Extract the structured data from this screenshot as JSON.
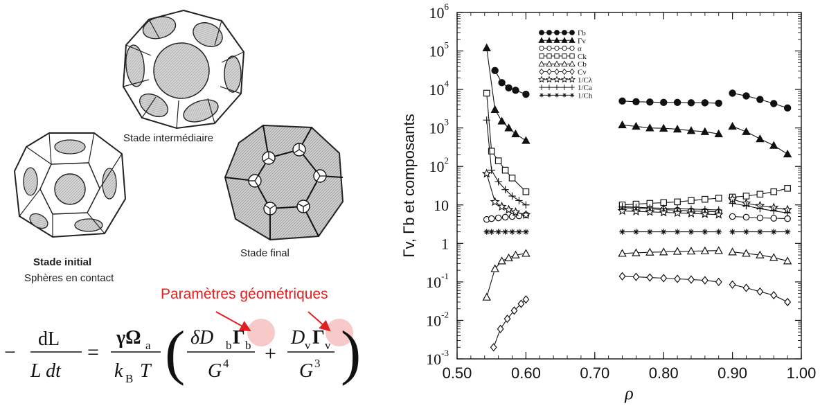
{
  "figure": {
    "captions": {
      "intermediate": "Stade intermédiaire",
      "initial_title": "Stade initial",
      "initial_subtitle": "Sphères en contact",
      "final": "Stade final"
    },
    "annotation": "Paramètres géométriques",
    "equation": {
      "minus": "−",
      "lhs_num": "dL",
      "lhs_den": "L dt",
      "equals": "=",
      "coef_num": "γΩ",
      "coef_num_sub": "a",
      "coef_den": "k",
      "coef_den_sub": "B",
      "coef_den_T": "T",
      "term1_num_prefix": "δD",
      "term1_num_sub": "b",
      "term1_gamma": "Γ",
      "term1_gamma_sub": "b",
      "term1_den": "G",
      "term1_den_exp": "4",
      "plus": "+",
      "term2_num_prefix": "D",
      "term2_num_sub": "v",
      "term2_gamma": "Γ",
      "term2_gamma_sub": "v",
      "term2_den": "G",
      "term2_den_exp": "3",
      "highlight_color": "#f7c9c9",
      "arrow_color": "#e02020"
    }
  },
  "chart_data": {
    "type": "scatter",
    "xlabel": "ρ",
    "ylabel": "Γv, Γb et composants",
    "xlim": [
      0.5,
      1.0
    ],
    "ylim_log10": [
      -3,
      6
    ],
    "x_ticks": [
      "0.50",
      "0.60",
      "0.70",
      "0.80",
      "0.90",
      "1.00"
    ],
    "y_ticks": [
      {
        "base": "10",
        "exp": "6"
      },
      {
        "base": "10",
        "exp": "5"
      },
      {
        "base": "10",
        "exp": "4"
      },
      {
        "base": "10",
        "exp": "3"
      },
      {
        "base": "10",
        "exp": "2"
      },
      {
        "base": "10",
        "exp": ""
      },
      {
        "base": "1",
        "exp": ""
      },
      {
        "base": "10",
        "exp": "-1"
      },
      {
        "base": "10",
        "exp": "-2"
      },
      {
        "base": "10",
        "exp": "-3"
      }
    ],
    "legend_position": "top-left",
    "series": [
      {
        "name": "Γb",
        "marker": "filled-circle",
        "segments": [
          {
            "x": [
              0.555,
              0.565,
              0.575,
              0.585,
              0.6
            ],
            "y": [
              31000,
              15000,
              11000,
              9500,
              7500
            ]
          },
          {
            "x": [
              0.74,
              0.76,
              0.78,
              0.8,
              0.82,
              0.84,
              0.86,
              0.88
            ],
            "y": [
              5000,
              4800,
              4700,
              4600,
              4600,
              4500,
              4500,
              4400
            ]
          },
          {
            "x": [
              0.9,
              0.92,
              0.94,
              0.96,
              0.98
            ],
            "y": [
              8000,
              6800,
              5500,
              4300,
              3300
            ]
          }
        ]
      },
      {
        "name": "Γv",
        "marker": "filled-triangle",
        "segments": [
          {
            "x": [
              0.543,
              0.555,
              0.565,
              0.575,
              0.585,
              0.6
            ],
            "y": [
              120000,
              3000,
              1500,
              1000,
              700,
              470
            ]
          },
          {
            "x": [
              0.74,
              0.76,
              0.78,
              0.8,
              0.82,
              0.84,
              0.86,
              0.88
            ],
            "y": [
              1200,
              1100,
              1000,
              980,
              930,
              850,
              800,
              700
            ]
          },
          {
            "x": [
              0.9,
              0.92,
              0.94,
              0.96,
              0.98
            ],
            "y": [
              1100,
              800,
              520,
              350,
              210
            ]
          }
        ]
      },
      {
        "name": "α",
        "marker": "open-circle",
        "segments": [
          {
            "x": [
              0.543,
              0.55,
              0.56,
              0.57,
              0.58,
              0.59,
              0.6
            ],
            "y": [
              4.2,
              4.4,
              4.6,
              4.8,
              5.0,
              5.2,
              5.5
            ]
          },
          {
            "x": [
              0.74,
              0.76,
              0.78,
              0.8,
              0.82,
              0.84,
              0.86,
              0.88
            ],
            "y": [
              8.5,
              8.2,
              7.9,
              7.6,
              7.3,
              7.0,
              6.8,
              6.6
            ]
          },
          {
            "x": [
              0.9,
              0.92,
              0.94,
              0.96,
              0.98
            ],
            "y": [
              5.0,
              4.8,
              4.6,
              4.5,
              4.4
            ]
          }
        ]
      },
      {
        "name": "Ck",
        "marker": "open-square",
        "segments": [
          {
            "x": [
              0.543,
              0.55,
              0.56,
              0.57,
              0.58,
              0.6
            ],
            "y": [
              8000,
              250,
              140,
              80,
              50,
              22
            ]
          },
          {
            "x": [
              0.74,
              0.76,
              0.78,
              0.8,
              0.82,
              0.84,
              0.86,
              0.88
            ],
            "y": [
              10,
              10.5,
              11,
              11.5,
              12,
              13,
              14,
              15
            ]
          },
          {
            "x": [
              0.9,
              0.92,
              0.94,
              0.96,
              0.98
            ],
            "y": [
              16,
              17,
              19,
              22,
              27
            ]
          }
        ]
      },
      {
        "name": "Cb",
        "marker": "open-triangle",
        "segments": [
          {
            "x": [
              0.543,
              0.555,
              0.565,
              0.575,
              0.585,
              0.6
            ],
            "y": [
              0.04,
              0.22,
              0.35,
              0.42,
              0.5,
              0.55
            ]
          },
          {
            "x": [
              0.74,
              0.76,
              0.78,
              0.8,
              0.82,
              0.84,
              0.86,
              0.88
            ],
            "y": [
              0.55,
              0.57,
              0.59,
              0.6,
              0.62,
              0.63,
              0.64,
              0.65
            ]
          },
          {
            "x": [
              0.9,
              0.92,
              0.94,
              0.96,
              0.98
            ],
            "y": [
              0.6,
              0.55,
              0.5,
              0.43,
              0.35
            ]
          }
        ]
      },
      {
        "name": "Cv",
        "marker": "open-diamond",
        "segments": [
          {
            "x": [
              0.553,
              0.563,
              0.573,
              0.583,
              0.593,
              0.6
            ],
            "y": [
              0.002,
              0.006,
              0.011,
              0.018,
              0.027,
              0.035
            ]
          },
          {
            "x": [
              0.74,
              0.76,
              0.78,
              0.8,
              0.82,
              0.84,
              0.86,
              0.88
            ],
            "y": [
              0.14,
              0.135,
              0.13,
              0.125,
              0.12,
              0.115,
              0.11,
              0.1
            ]
          },
          {
            "x": [
              0.9,
              0.92,
              0.94,
              0.96,
              0.98
            ],
            "y": [
              0.085,
              0.07,
              0.056,
              0.045,
              0.03
            ]
          }
        ]
      },
      {
        "name": "1/Cλ",
        "marker": "open-star",
        "segments": [
          {
            "x": [
              0.543,
              0.555,
              0.565,
              0.575,
              0.585,
              0.6
            ],
            "y": [
              65,
              12,
              9,
              7.5,
              6.5,
              5.5
            ]
          },
          {
            "x": [
              0.74,
              0.76,
              0.78,
              0.8,
              0.82,
              0.84,
              0.86,
              0.88
            ],
            "y": [
              7,
              6.8,
              6.6,
              6.4,
              6.2,
              6.0,
              5.8,
              5.6
            ]
          },
          {
            "x": [
              0.9,
              0.92,
              0.94,
              0.96,
              0.98
            ],
            "y": [
              14,
              11,
              9.5,
              8.5,
              7.5
            ]
          }
        ]
      },
      {
        "name": "1/Ca",
        "marker": "plus",
        "segments": [
          {
            "x": [
              0.543,
              0.55,
              0.56,
              0.57,
              0.58,
              0.59,
              0.6
            ],
            "y": [
              1600,
              80,
              40,
              25,
              17,
              13,
              10
            ]
          },
          {
            "x": [
              0.74,
              0.76,
              0.78,
              0.8,
              0.82,
              0.84,
              0.86,
              0.88
            ],
            "y": [
              9,
              8.7,
              8.4,
              8.2,
              8.0,
              7.8,
              7.6,
              7.4
            ]
          },
          {
            "x": [
              0.9,
              0.92,
              0.94,
              0.96,
              0.98
            ],
            "y": [
              11,
              9.5,
              8.0,
              7.0,
              6.2
            ]
          }
        ]
      },
      {
        "name": "1/Ch",
        "marker": "asterisk",
        "segments": [
          {
            "x": [
              0.543,
              0.55,
              0.56,
              0.57,
              0.58,
              0.59,
              0.6
            ],
            "y": [
              2,
              2,
              2,
              2,
              2,
              2,
              2
            ]
          },
          {
            "x": [
              0.74,
              0.76,
              0.78,
              0.8,
              0.82,
              0.84,
              0.86,
              0.88
            ],
            "y": [
              2,
              2,
              2,
              2,
              2,
              2,
              2,
              2
            ]
          },
          {
            "x": [
              0.9,
              0.92,
              0.94,
              0.96,
              0.98
            ],
            "y": [
              2,
              2,
              2,
              2,
              2
            ]
          }
        ]
      }
    ]
  }
}
